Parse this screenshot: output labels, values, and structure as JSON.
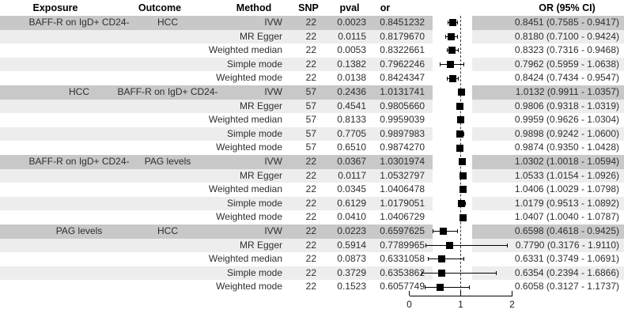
{
  "style": {
    "shade_dark": "#c8c8c8",
    "shade_light": "#ededed",
    "marker_color": "#000000",
    "text_color": "#2e2e2e",
    "reference_line_style": "dashed"
  },
  "chart_data": {
    "type": "forest",
    "title": "",
    "xlabel": "",
    "xlim": [
      0,
      2
    ],
    "reference_x": 1,
    "grid": false,
    "axis_ticks": [
      "0",
      "1",
      "2"
    ],
    "axis_tick_values": [
      0,
      1,
      2
    ],
    "columns": [
      "Exposure",
      "Outcome",
      "Method",
      "SNP",
      "pval",
      "or",
      "OR (95% CI)"
    ],
    "rows": [
      {
        "exposure": "BAFF-R on IgD+ CD24-",
        "outcome": "HCC",
        "method": "IVW",
        "snp": "22",
        "pval": "0.0023",
        "or": "0.8451232",
        "or_value": 0.8451232,
        "ci_low": 0.7585,
        "ci_high": 0.9417,
        "ci_text": "0.8451 (0.7585 - 0.9417)",
        "shade": "dark"
      },
      {
        "exposure": "",
        "outcome": "",
        "method": "MR Egger",
        "snp": "22",
        "pval": "0.0115",
        "or": "0.8179670",
        "or_value": 0.817967,
        "ci_low": 0.71,
        "ci_high": 0.9424,
        "ci_text": "0.8180 (0.7100 - 0.9424)",
        "shade": "light"
      },
      {
        "exposure": "",
        "outcome": "",
        "method": "Weighted median",
        "snp": "22",
        "pval": "0.0053",
        "or": "0.8322661",
        "or_value": 0.8322661,
        "ci_low": 0.7316,
        "ci_high": 0.9468,
        "ci_text": "0.8323 (0.7316 - 0.9468)",
        "shade": "white"
      },
      {
        "exposure": "",
        "outcome": "",
        "method": "Simple mode",
        "snp": "22",
        "pval": "0.1382",
        "or": "0.7962246",
        "or_value": 0.7962246,
        "ci_low": 0.5959,
        "ci_high": 1.0638,
        "ci_text": "0.7962 (0.5959 - 1.0638)",
        "shade": "light"
      },
      {
        "exposure": "",
        "outcome": "",
        "method": "Weighted mode",
        "snp": "22",
        "pval": "0.0138",
        "or": "0.8424347",
        "or_value": 0.8424347,
        "ci_low": 0.7434,
        "ci_high": 0.9547,
        "ci_text": "0.8424 (0.7434 - 0.9547)",
        "shade": "white"
      },
      {
        "exposure": "HCC",
        "outcome": "BAFF-R on IgD+ CD24-",
        "method": "IVW",
        "snp": "57",
        "pval": "0.2436",
        "or": "1.0131741",
        "or_value": 1.0131741,
        "ci_low": 0.9911,
        "ci_high": 1.0357,
        "ci_text": "1.0132 (0.9911 - 1.0357)",
        "shade": "dark"
      },
      {
        "exposure": "",
        "outcome": "",
        "method": "MR Egger",
        "snp": "57",
        "pval": "0.4541",
        "or": "0.9805660",
        "or_value": 0.980566,
        "ci_low": 0.9318,
        "ci_high": 1.0319,
        "ci_text": "0.9806 (0.9318 - 1.0319)",
        "shade": "light"
      },
      {
        "exposure": "",
        "outcome": "",
        "method": "Weighted median",
        "snp": "57",
        "pval": "0.8133",
        "or": "0.9959039",
        "or_value": 0.9959039,
        "ci_low": 0.9626,
        "ci_high": 1.0304,
        "ci_text": "0.9959 (0.9626 - 1.0304)",
        "shade": "white"
      },
      {
        "exposure": "",
        "outcome": "",
        "method": "Simple mode",
        "snp": "57",
        "pval": "0.7705",
        "or": "0.9897983",
        "or_value": 0.9897983,
        "ci_low": 0.9242,
        "ci_high": 1.06,
        "ci_text": "0.9898 (0.9242 - 1.0600)",
        "shade": "light"
      },
      {
        "exposure": "",
        "outcome": "",
        "method": "Weighted mode",
        "snp": "57",
        "pval": "0.6510",
        "or": "0.9874270",
        "or_value": 0.987427,
        "ci_low": 0.935,
        "ci_high": 1.0428,
        "ci_text": "0.9874 (0.9350 - 1.0428)",
        "shade": "white"
      },
      {
        "exposure": "BAFF-R on IgD+ CD24-",
        "outcome": "PAG levels",
        "method": "IVW",
        "snp": "22",
        "pval": "0.0367",
        "or": "1.0301974",
        "or_value": 1.0301974,
        "ci_low": 1.0018,
        "ci_high": 1.0594,
        "ci_text": "1.0302 (1.0018 - 1.0594)",
        "shade": "dark"
      },
      {
        "exposure": "",
        "outcome": "",
        "method": "MR Egger",
        "snp": "22",
        "pval": "0.0117",
        "or": "1.0532797",
        "or_value": 1.0532797,
        "ci_low": 1.0154,
        "ci_high": 1.0926,
        "ci_text": "1.0533 (1.0154 - 1.0926)",
        "shade": "light"
      },
      {
        "exposure": "",
        "outcome": "",
        "method": "Weighted median",
        "snp": "22",
        "pval": "0.0345",
        "or": "1.0406478",
        "or_value": 1.0406478,
        "ci_low": 1.0029,
        "ci_high": 1.0798,
        "ci_text": "1.0406 (1.0029 - 1.0798)",
        "shade": "white"
      },
      {
        "exposure": "",
        "outcome": "",
        "method": "Simple mode",
        "snp": "22",
        "pval": "0.6129",
        "or": "1.0179051",
        "or_value": 1.0179051,
        "ci_low": 0.9513,
        "ci_high": 1.0892,
        "ci_text": "1.0179 (0.9513 - 1.0892)",
        "shade": "light"
      },
      {
        "exposure": "",
        "outcome": "",
        "method": "Weighted mode",
        "snp": "22",
        "pval": "0.0410",
        "or": "1.0406729",
        "or_value": 1.0406729,
        "ci_low": 1.004,
        "ci_high": 1.0787,
        "ci_text": "1.0407 (1.0040 - 1.0787)",
        "shade": "white"
      },
      {
        "exposure": "PAG levels",
        "outcome": "HCC",
        "method": "IVW",
        "snp": "22",
        "pval": "0.0223",
        "or": "0.6597625",
        "or_value": 0.6597625,
        "ci_low": 0.4618,
        "ci_high": 0.9425,
        "ci_text": "0.6598 (0.4618 - 0.9425)",
        "shade": "dark"
      },
      {
        "exposure": "",
        "outcome": "",
        "method": "MR Egger",
        "snp": "22",
        "pval": "0.5914",
        "or": "0.7789965",
        "or_value": 0.7789965,
        "ci_low": 0.3176,
        "ci_high": 1.911,
        "ci_text": "0.7790 (0.3176 - 1.9110)",
        "shade": "light"
      },
      {
        "exposure": "",
        "outcome": "",
        "method": "Weighted median",
        "snp": "22",
        "pval": "0.0873",
        "or": "0.6331058",
        "or_value": 0.6331058,
        "ci_low": 0.3749,
        "ci_high": 1.0691,
        "ci_text": "0.6331 (0.3749 - 1.0691)",
        "shade": "white"
      },
      {
        "exposure": "",
        "outcome": "",
        "method": "Simple mode",
        "snp": "22",
        "pval": "0.3729",
        "or": "0.6353862",
        "or_value": 0.6353862,
        "ci_low": 0.2394,
        "ci_high": 1.6866,
        "ci_text": "0.6354 (0.2394 - 1.6866)",
        "shade": "light"
      },
      {
        "exposure": "",
        "outcome": "",
        "method": "Weighted mode",
        "snp": "22",
        "pval": "0.1523",
        "or": "0.6057749",
        "or_value": 0.6057749,
        "ci_low": 0.3127,
        "ci_high": 1.1737,
        "ci_text": "0.6058 (0.3127 - 1.1737)",
        "shade": "white"
      }
    ]
  }
}
